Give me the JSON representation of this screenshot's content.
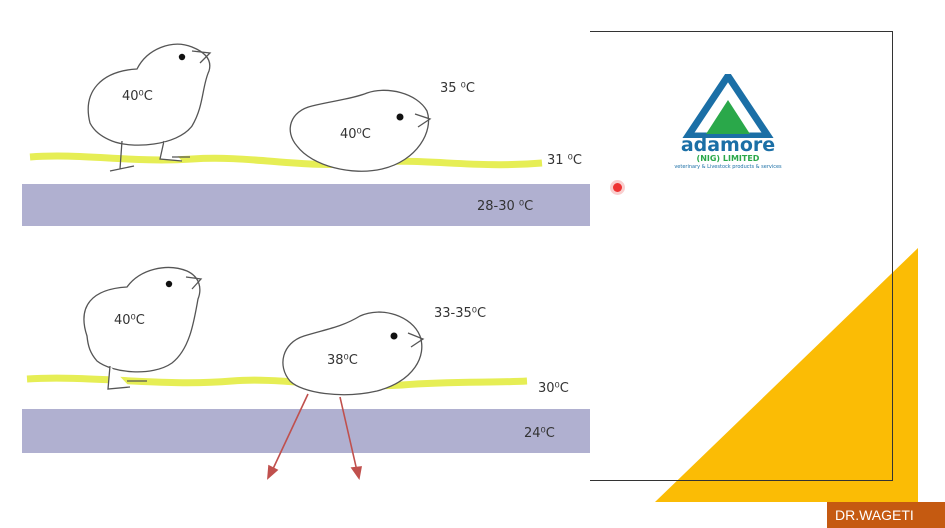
{
  "diagram": {
    "top_panel": {
      "chick_standing_label": "40⁰C",
      "chick_lying_label": "40⁰C",
      "air_temp": "35 ⁰C",
      "litter_temp": "31 ⁰C",
      "floor_temp": "28-30 ⁰C"
    },
    "bottom_panel": {
      "chick_standing_label": "40⁰C",
      "chick_lying_label": "38⁰C",
      "air_temp": "33-35⁰C",
      "litter_temp": "30⁰C",
      "floor_temp": "24⁰C"
    }
  },
  "logo": {
    "name": "adamore",
    "line2": "(NIG) LIMITED",
    "line3": "veterinary & Livestock products & services"
  },
  "footer": {
    "author": "DR.WAGETI"
  },
  "colors": {
    "accent_yellow": "#fbbc05",
    "floor_band": "#b0b0d0",
    "litter": "#e6ee55",
    "arrow": "#c0504d",
    "author_bg": "#c55a11"
  }
}
